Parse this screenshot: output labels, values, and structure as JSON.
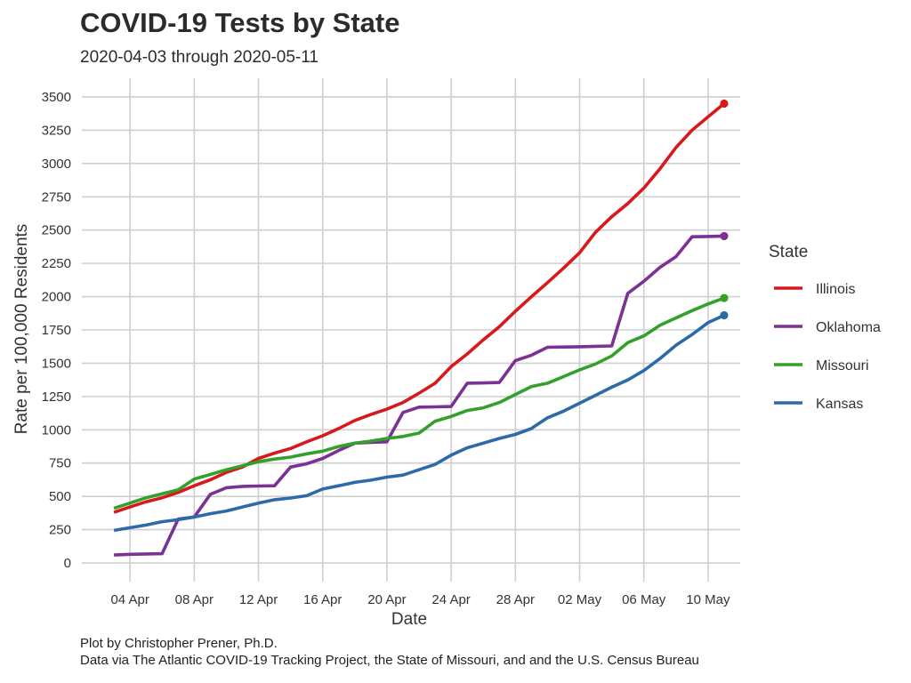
{
  "chart_data": {
    "type": "line",
    "title": "COVID-19 Tests by State",
    "subtitle": "2020-04-03 through 2020-05-11",
    "xlabel": "Date",
    "ylabel": "Rate per 100,000 Residents",
    "x_start": "2020-04-03",
    "x_end": "2020-05-11",
    "xlim": [
      "2020-04-01",
      "2020-05-12"
    ],
    "ylim": [
      -140,
      3640
    ],
    "x_ticks": [
      {
        "date": "2020-04-04",
        "label": "04 Apr"
      },
      {
        "date": "2020-04-08",
        "label": "08 Apr"
      },
      {
        "date": "2020-04-12",
        "label": "12 Apr"
      },
      {
        "date": "2020-04-16",
        "label": "16 Apr"
      },
      {
        "date": "2020-04-20",
        "label": "20 Apr"
      },
      {
        "date": "2020-04-24",
        "label": "24 Apr"
      },
      {
        "date": "2020-04-28",
        "label": "28 Apr"
      },
      {
        "date": "2020-05-02",
        "label": "02 May"
      },
      {
        "date": "2020-05-06",
        "label": "06 May"
      },
      {
        "date": "2020-05-10",
        "label": "10 May"
      }
    ],
    "y_ticks": [
      0,
      250,
      500,
      750,
      1000,
      1250,
      1500,
      1750,
      2000,
      2250,
      2500,
      2750,
      3000,
      3250,
      3500
    ],
    "grid": true,
    "legend_position": "right",
    "legend_title": "State",
    "series": [
      {
        "name": "Illinois",
        "color": "#d7191c",
        "values": [
          380,
          420,
          460,
          490,
          530,
          580,
          625,
          680,
          720,
          785,
          825,
          860,
          910,
          955,
          1010,
          1070,
          1115,
          1155,
          1205,
          1275,
          1350,
          1475,
          1570,
          1675,
          1775,
          1890,
          2000,
          2105,
          2215,
          2330,
          2485,
          2600,
          2700,
          2815,
          2960,
          3120,
          3250,
          3350,
          3450
        ]
      },
      {
        "name": "Oklahoma",
        "color": "#7b3294",
        "values": [
          60,
          65,
          68,
          70,
          330,
          345,
          515,
          565,
          575,
          578,
          580,
          720,
          745,
          785,
          845,
          900,
          905,
          910,
          1130,
          1170,
          1172,
          1175,
          1350,
          1352,
          1355,
          1520,
          1560,
          1620,
          1622,
          1624,
          1627,
          1630,
          2025,
          2115,
          2220,
          2300,
          2450,
          2452,
          2455
        ]
      },
      {
        "name": "Missouri",
        "color": "#33a02c",
        "values": [
          410,
          450,
          490,
          520,
          550,
          630,
          665,
          700,
          730,
          760,
          780,
          795,
          820,
          840,
          875,
          900,
          915,
          935,
          950,
          975,
          1065,
          1100,
          1145,
          1165,
          1205,
          1265,
          1325,
          1350,
          1400,
          1450,
          1495,
          1555,
          1655,
          1705,
          1785,
          1840,
          1895,
          1945,
          1990
        ]
      },
      {
        "name": "Kansas",
        "color": "#2c6aa8",
        "values": [
          245,
          265,
          285,
          310,
          325,
          345,
          370,
          390,
          420,
          450,
          475,
          488,
          505,
          555,
          580,
          605,
          622,
          645,
          660,
          700,
          740,
          810,
          865,
          900,
          935,
          965,
          1010,
          1090,
          1140,
          1200,
          1260,
          1320,
          1375,
          1445,
          1535,
          1635,
          1715,
          1805,
          1860
        ]
      }
    ]
  },
  "caption": {
    "line1": "Plot by Christopher Prener, Ph.D.",
    "line2": "Data via The Atlantic COVID-19 Tracking Project, the State of Missouri, and and the U.S. Census Bureau"
  }
}
